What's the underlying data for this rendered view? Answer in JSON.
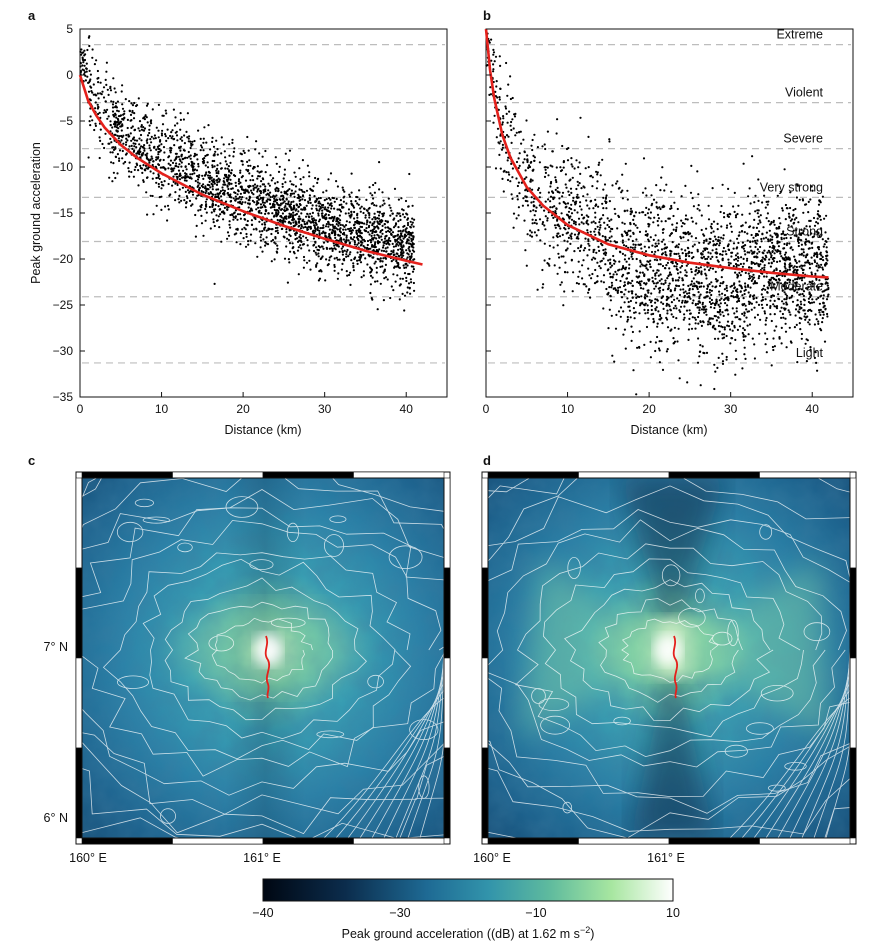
{
  "chart_data": [
    {
      "type": "scatter",
      "panel": "a",
      "xlabel": "Distance (km)",
      "ylabel": "Peak ground acceleration",
      "xlim": [
        0,
        45
      ],
      "ylim": [
        -35,
        5
      ],
      "xticks": [
        0,
        10,
        20,
        30,
        40
      ],
      "yticks": [
        5,
        0,
        -5,
        -10,
        -15,
        -20,
        -25,
        -30,
        -35
      ],
      "intensity_levels": [
        3.3,
        -3,
        -8,
        -13.3,
        -18.1,
        -24.1,
        -31.3
      ],
      "fit_curve": {
        "x": [
          0,
          1,
          2,
          3,
          5,
          7,
          10,
          15,
          20,
          25,
          30,
          35,
          40,
          42
        ],
        "y": [
          0,
          -2.8,
          -4.4,
          -5.7,
          -7.6,
          -9.0,
          -10.7,
          -13.0,
          -14.8,
          -16.4,
          -17.8,
          -19.1,
          -20.2,
          -20.6
        ]
      },
      "color": "#e4211c"
    },
    {
      "type": "scatter",
      "panel": "b",
      "xlabel": "Distance (km)",
      "xlim": [
        0,
        45
      ],
      "ylim": [
        -35,
        5
      ],
      "xticks": [
        0,
        10,
        20,
        30,
        40
      ],
      "intensity_levels": [
        {
          "label": "Extreme",
          "y": 3.3
        },
        {
          "label": "Violent",
          "y": -3
        },
        {
          "label": "Severe",
          "y": -8
        },
        {
          "label": "Very strong",
          "y": -13.3
        },
        {
          "label": "Strong",
          "y": -18.1
        },
        {
          "label": "Moderate",
          "y": -24.1
        },
        {
          "label": "Light",
          "y": -31.3
        }
      ],
      "fit_curve": {
        "x": [
          0,
          0.5,
          1,
          2,
          3,
          5,
          7,
          10,
          15,
          20,
          25,
          30,
          35,
          40,
          42
        ],
        "y": [
          5,
          0.5,
          -2.5,
          -6.5,
          -9.0,
          -12.2,
          -14.2,
          -16.3,
          -18.4,
          -19.6,
          -20.4,
          -21.0,
          -21.5,
          -21.9,
          -22.0
        ]
      },
      "color": "#e4211c"
    },
    {
      "type": "heatmap",
      "panel": "c",
      "xticks": [
        "160° E",
        "161° E"
      ],
      "yticks": [
        "7° N",
        "6° N"
      ],
      "pattern": "symmetric"
    },
    {
      "type": "heatmap",
      "panel": "d",
      "xticks": [
        "160° E",
        "161° E"
      ],
      "pattern": "butterfly"
    }
  ],
  "colorbar": {
    "ticks": [
      "−40",
      "−30",
      "−10",
      "10"
    ],
    "label": "Peak ground acceleration ((dB) at 1.62 m s",
    "superscript": "−2",
    "label_end": ")"
  },
  "panel_labels": [
    "a",
    "b",
    "c",
    "d"
  ]
}
